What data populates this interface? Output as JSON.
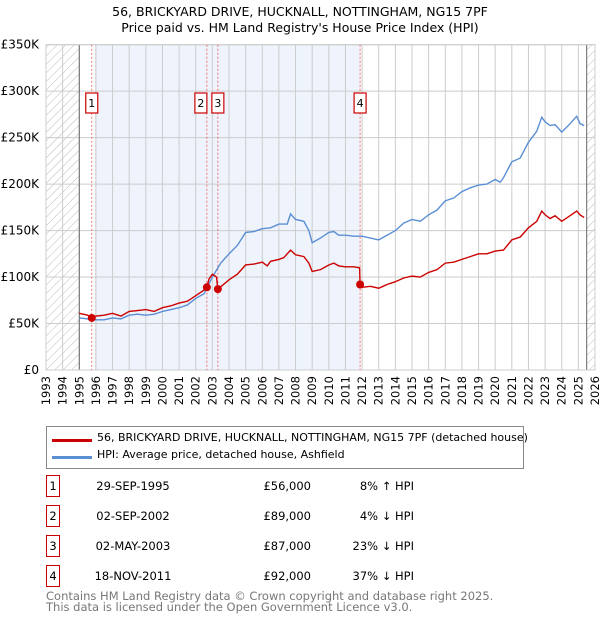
{
  "title": "56, BRICKYARD DRIVE, HUCKNALL, NOTTINGHAM, NG15 7PF",
  "subtitle": "Price paid vs. HM Land Registry's House Price Index (HPI)",
  "colors": {
    "property": "#cc0000",
    "hpi": "#5b8fd4",
    "shade": "#eef3fc"
  },
  "chart_data": {
    "type": "line",
    "xlim": [
      1993,
      2026
    ],
    "ylim": [
      0,
      350000
    ],
    "y_ticks": [
      {
        "v": 0,
        "l": "£0"
      },
      {
        "v": 50000,
        "l": "£50K"
      },
      {
        "v": 100000,
        "l": "£100K"
      },
      {
        "v": 150000,
        "l": "£150K"
      },
      {
        "v": 200000,
        "l": "£200K"
      },
      {
        "v": 250000,
        "l": "£250K"
      },
      {
        "v": 300000,
        "l": "£300K"
      },
      {
        "v": 350000,
        "l": "£350K"
      }
    ],
    "x_ticks": [
      "1993",
      "1994",
      "1995",
      "1996",
      "1997",
      "1998",
      "1999",
      "2000",
      "2001",
      "2002",
      "2003",
      "2004",
      "2005",
      "2006",
      "2007",
      "2008",
      "2009",
      "2010",
      "2011",
      "2012",
      "2013",
      "2014",
      "2015",
      "2016",
      "2017",
      "2018",
      "2019",
      "2020",
      "2021",
      "2022",
      "2023",
      "2024",
      "2025",
      "2026"
    ],
    "series": [
      {
        "name": "56, BRICKYARD DRIVE, HUCKNALL, NOTTINGHAM, NG15 7PF (detached house)",
        "color": "#cc0000",
        "x": [
          1995,
          1995.5,
          1995.75,
          1996,
          1996.5,
          1997,
          1997.5,
          1998,
          1998.5,
          1999,
          1999.5,
          2000,
          2000.5,
          2001,
          2001.5,
          2002,
          2002.5,
          2002.67,
          2002.8,
          2003,
          2003.25,
          2003.33,
          2003.6,
          2004,
          2004.5,
          2005,
          2005.5,
          2006,
          2006.3,
          2006.5,
          2007,
          2007.3,
          2007.7,
          2008,
          2008.5,
          2008.8,
          2009,
          2009.5,
          2010,
          2010.3,
          2010.6,
          2011,
          2011.5,
          2011.85,
          2011.88,
          2012,
          2012.5,
          2013,
          2013.5,
          2014,
          2014.5,
          2015,
          2015.5,
          2016,
          2016.5,
          2017,
          2017.5,
          2018,
          2018.5,
          2019,
          2019.5,
          2020,
          2020.5,
          2021,
          2021.5,
          2022,
          2022.5,
          2022.8,
          2023,
          2023.3,
          2023.6,
          2024,
          2024.5,
          2024.9,
          2025.1,
          2025.35
        ],
        "y": [
          61000,
          59000,
          56000,
          58000,
          59000,
          61000,
          58000,
          63000,
          64000,
          65000,
          63000,
          67000,
          69000,
          72000,
          74000,
          80000,
          86000,
          89000,
          98000,
          103000,
          100000,
          87000,
          91000,
          97000,
          103000,
          113000,
          114000,
          116000,
          112000,
          117000,
          119000,
          121000,
          129000,
          124000,
          122000,
          115000,
          106000,
          108000,
          113000,
          115000,
          112000,
          111000,
          111000,
          110000,
          92000,
          89000,
          90000,
          88000,
          92000,
          95000,
          99000,
          101000,
          100000,
          105000,
          108000,
          115000,
          116000,
          119000,
          122000,
          125000,
          125000,
          128000,
          129000,
          140000,
          143000,
          153000,
          160000,
          171000,
          167000,
          163000,
          166000,
          160000,
          166000,
          171000,
          167000,
          164000
        ]
      },
      {
        "name": "HPI: Average price, detached house, Ashfield",
        "color": "#5b8fd4",
        "x": [
          1995,
          1995.5,
          1996,
          1996.5,
          1997,
          1997.5,
          1998,
          1998.5,
          1999,
          1999.5,
          2000,
          2000.5,
          2001,
          2001.5,
          2002,
          2002.5,
          2003,
          2003.5,
          2004,
          2004.5,
          2005,
          2005.5,
          2006,
          2006.5,
          2007,
          2007.5,
          2007.7,
          2008,
          2008.5,
          2008.8,
          2009,
          2009.5,
          2010,
          2010.3,
          2010.6,
          2011,
          2011.5,
          2012,
          2012.5,
          2013,
          2013.5,
          2014,
          2014.5,
          2015,
          2015.5,
          2016,
          2016.5,
          2017,
          2017.5,
          2018,
          2018.5,
          2019,
          2019.5,
          2020,
          2020.3,
          2020.5,
          2021,
          2021.5,
          2022,
          2022.5,
          2022.8,
          2023,
          2023.3,
          2023.6,
          2024,
          2024.5,
          2024.9,
          2025.1,
          2025.35
        ],
        "y": [
          56000,
          55000,
          54000,
          54000,
          56000,
          55000,
          59000,
          60000,
          59000,
          60000,
          63000,
          65000,
          67000,
          70000,
          77000,
          82000,
          100000,
          115000,
          125000,
          134000,
          148000,
          149000,
          152000,
          153000,
          157000,
          157000,
          168000,
          162000,
          160000,
          150000,
          137000,
          142000,
          148000,
          149000,
          145000,
          145000,
          144000,
          144000,
          142000,
          140000,
          145000,
          150000,
          158000,
          162000,
          160000,
          167000,
          172000,
          182000,
          185000,
          192000,
          196000,
          199000,
          200000,
          205000,
          202000,
          207000,
          224000,
          228000,
          245000,
          257000,
          272000,
          267000,
          263000,
          264000,
          256000,
          265000,
          273000,
          265000,
          263000
        ]
      }
    ],
    "sales": [
      {
        "n": "1",
        "x": 1995.75,
        "y": 56000
      },
      {
        "n": "2",
        "x": 2002.67,
        "y": 89000
      },
      {
        "n": "3",
        "x": 2003.33,
        "y": 87000
      },
      {
        "n": "4",
        "x": 2011.88,
        "y": 92000
      }
    ]
  },
  "legend": {
    "property": "56, BRICKYARD DRIVE, HUCKNALL, NOTTINGHAM, NG15 7PF (detached house)",
    "hpi": "HPI: Average price, detached house, Ashfield"
  },
  "transactions": [
    {
      "n": "1",
      "date": "29-SEP-1995",
      "price": "£56,000",
      "hpi": "8% ↑ HPI"
    },
    {
      "n": "2",
      "date": "02-SEP-2002",
      "price": "£89,000",
      "hpi": "4% ↓ HPI"
    },
    {
      "n": "3",
      "date": "02-MAY-2003",
      "price": "£87,000",
      "hpi": "23% ↓ HPI"
    },
    {
      "n": "4",
      "date": "18-NOV-2011",
      "price": "£92,000",
      "hpi": "37% ↓ HPI"
    }
  ],
  "footer": [
    "Contains HM Land Registry data © Crown copyright and database right 2025.",
    "This data is licensed under the Open Government Licence v3.0."
  ]
}
